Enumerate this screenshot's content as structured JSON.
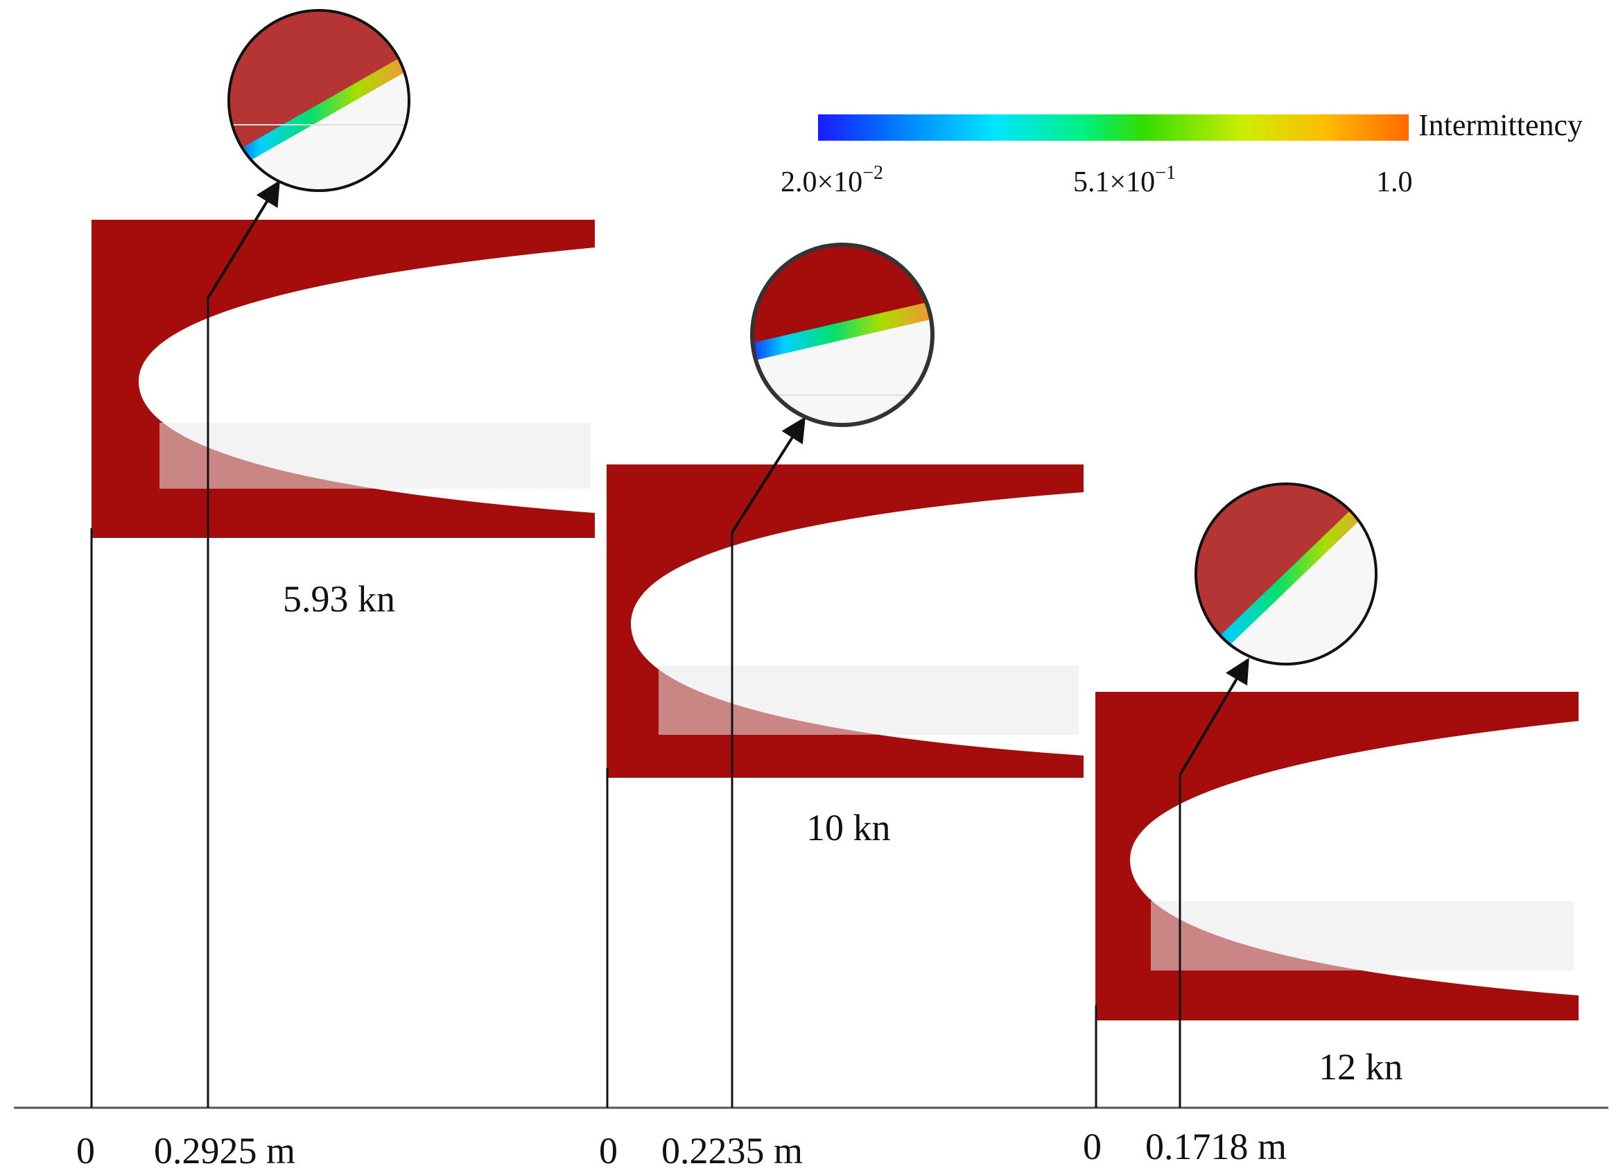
{
  "colorbar": {
    "label": "Intermittency",
    "tick_min": "2.0×10",
    "tick_min_exp": "−2",
    "tick_mid": "5.1×10",
    "tick_mid_exp": "−1",
    "tick_max": "1.0",
    "colors": [
      "#1a1aff",
      "#0080ff",
      "#00e5ff",
      "#00f080",
      "#33dd00",
      "#ccee00",
      "#ffbb00",
      "#ff6a00"
    ]
  },
  "panels": [
    {
      "label": "5.93 kn",
      "zero_label": "0",
      "distance_label": "0.2925 m"
    },
    {
      "label": "10 kn",
      "zero_label": "0",
      "distance_label": "0.2235 m"
    },
    {
      "label": "12 kn",
      "zero_label": "0",
      "distance_label": "0.1718 m"
    }
  ],
  "colors": {
    "domain_fill": "#a50d0d",
    "zoom_fill": "#b53535",
    "line": "#111111"
  }
}
